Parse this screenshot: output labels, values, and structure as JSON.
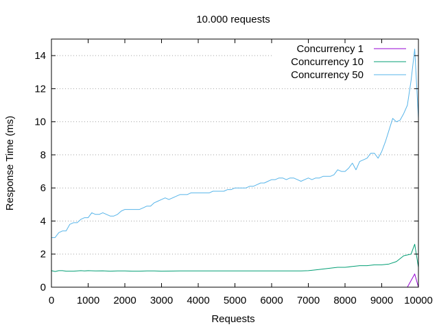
{
  "chart_data": {
    "type": "line",
    "title": "10.000 requests",
    "xlabel": "Requests",
    "ylabel": "Response Time (ms)",
    "xlim": [
      0,
      10000
    ],
    "ylim": [
      0,
      15
    ],
    "xticks": [
      0,
      1000,
      2000,
      3000,
      4000,
      5000,
      6000,
      7000,
      8000,
      9000,
      10000
    ],
    "yticks": [
      0,
      2,
      4,
      6,
      8,
      10,
      12,
      14
    ],
    "grid": "horizontal",
    "legend_position": "top-right",
    "series": [
      {
        "name": "Concurrency 1",
        "color": "#9400d3",
        "points": [
          [
            0,
            0
          ],
          [
            1000,
            0
          ],
          [
            2000,
            0
          ],
          [
            3000,
            0
          ],
          [
            4000,
            0
          ],
          [
            5000,
            0
          ],
          [
            6000,
            0
          ],
          [
            7000,
            0
          ],
          [
            8000,
            0
          ],
          [
            9000,
            0
          ],
          [
            9700,
            0
          ],
          [
            9900,
            0.8
          ],
          [
            10000,
            0
          ]
        ]
      },
      {
        "name": "Concurrency 10",
        "color": "#009e73",
        "points": [
          [
            0,
            1.0
          ],
          [
            100,
            0.95
          ],
          [
            200,
            1.0
          ],
          [
            300,
            1.0
          ],
          [
            400,
            0.97
          ],
          [
            500,
            0.97
          ],
          [
            600,
            0.97
          ],
          [
            700,
            0.98
          ],
          [
            800,
            1.0
          ],
          [
            900,
            0.98
          ],
          [
            1000,
            1.0
          ],
          [
            1200,
            0.98
          ],
          [
            1400,
            0.99
          ],
          [
            1600,
            0.97
          ],
          [
            1800,
            0.98
          ],
          [
            2000,
            0.98
          ],
          [
            2200,
            0.97
          ],
          [
            2400,
            0.97
          ],
          [
            2600,
            0.98
          ],
          [
            2800,
            0.98
          ],
          [
            3000,
            0.97
          ],
          [
            3500,
            0.98
          ],
          [
            4000,
            0.98
          ],
          [
            4500,
            0.98
          ],
          [
            5000,
            0.98
          ],
          [
            5500,
            0.98
          ],
          [
            6000,
            0.98
          ],
          [
            6500,
            0.98
          ],
          [
            6800,
            0.98
          ],
          [
            7000,
            1.0
          ],
          [
            7200,
            1.05
          ],
          [
            7400,
            1.1
          ],
          [
            7600,
            1.15
          ],
          [
            7800,
            1.2
          ],
          [
            8000,
            1.2
          ],
          [
            8200,
            1.25
          ],
          [
            8400,
            1.3
          ],
          [
            8600,
            1.3
          ],
          [
            8800,
            1.35
          ],
          [
            9000,
            1.35
          ],
          [
            9200,
            1.4
          ],
          [
            9400,
            1.55
          ],
          [
            9600,
            1.9
          ],
          [
            9800,
            2.0
          ],
          [
            9900,
            2.6
          ],
          [
            10000,
            1.2
          ]
        ]
      },
      {
        "name": "Concurrency 50",
        "color": "#56b4e9",
        "points": [
          [
            0,
            3.0
          ],
          [
            100,
            3.0
          ],
          [
            200,
            3.3
          ],
          [
            300,
            3.4
          ],
          [
            400,
            3.4
          ],
          [
            500,
            3.8
          ],
          [
            600,
            3.9
          ],
          [
            700,
            3.9
          ],
          [
            800,
            4.1
          ],
          [
            900,
            4.2
          ],
          [
            1000,
            4.2
          ],
          [
            1100,
            4.5
          ],
          [
            1200,
            4.4
          ],
          [
            1300,
            4.4
          ],
          [
            1400,
            4.5
          ],
          [
            1500,
            4.4
          ],
          [
            1600,
            4.3
          ],
          [
            1700,
            4.3
          ],
          [
            1800,
            4.4
          ],
          [
            1900,
            4.6
          ],
          [
            2000,
            4.7
          ],
          [
            2100,
            4.7
          ],
          [
            2200,
            4.7
          ],
          [
            2300,
            4.7
          ],
          [
            2400,
            4.7
          ],
          [
            2500,
            4.8
          ],
          [
            2600,
            4.9
          ],
          [
            2700,
            4.9
          ],
          [
            2800,
            5.1
          ],
          [
            2900,
            5.2
          ],
          [
            3000,
            5.3
          ],
          [
            3100,
            5.4
          ],
          [
            3200,
            5.3
          ],
          [
            3300,
            5.4
          ],
          [
            3400,
            5.5
          ],
          [
            3500,
            5.6
          ],
          [
            3600,
            5.6
          ],
          [
            3700,
            5.6
          ],
          [
            3800,
            5.7
          ],
          [
            3900,
            5.7
          ],
          [
            4000,
            5.7
          ],
          [
            4100,
            5.7
          ],
          [
            4200,
            5.7
          ],
          [
            4300,
            5.7
          ],
          [
            4400,
            5.8
          ],
          [
            4500,
            5.8
          ],
          [
            4600,
            5.8
          ],
          [
            4700,
            5.8
          ],
          [
            4800,
            5.9
          ],
          [
            4900,
            5.9
          ],
          [
            5000,
            6.0
          ],
          [
            5100,
            6.0
          ],
          [
            5200,
            6.0
          ],
          [
            5300,
            6.0
          ],
          [
            5400,
            6.1
          ],
          [
            5500,
            6.1
          ],
          [
            5600,
            6.2
          ],
          [
            5700,
            6.3
          ],
          [
            5800,
            6.3
          ],
          [
            5900,
            6.4
          ],
          [
            6000,
            6.5
          ],
          [
            6100,
            6.5
          ],
          [
            6200,
            6.6
          ],
          [
            6300,
            6.6
          ],
          [
            6400,
            6.5
          ],
          [
            6500,
            6.6
          ],
          [
            6600,
            6.6
          ],
          [
            6700,
            6.5
          ],
          [
            6800,
            6.4
          ],
          [
            6900,
            6.5
          ],
          [
            7000,
            6.6
          ],
          [
            7100,
            6.5
          ],
          [
            7200,
            6.6
          ],
          [
            7300,
            6.6
          ],
          [
            7400,
            6.7
          ],
          [
            7500,
            6.7
          ],
          [
            7600,
            6.7
          ],
          [
            7700,
            6.8
          ],
          [
            7800,
            7.1
          ],
          [
            7900,
            7.0
          ],
          [
            8000,
            7.0
          ],
          [
            8100,
            7.2
          ],
          [
            8200,
            7.5
          ],
          [
            8300,
            7.1
          ],
          [
            8400,
            7.6
          ],
          [
            8500,
            7.7
          ],
          [
            8600,
            7.8
          ],
          [
            8700,
            8.1
          ],
          [
            8800,
            8.1
          ],
          [
            8900,
            7.8
          ],
          [
            9000,
            8.2
          ],
          [
            9100,
            8.8
          ],
          [
            9200,
            9.5
          ],
          [
            9300,
            10.2
          ],
          [
            9400,
            10.0
          ],
          [
            9500,
            10.1
          ],
          [
            9600,
            10.5
          ],
          [
            9700,
            11.0
          ],
          [
            9800,
            12.5
          ],
          [
            9900,
            14.4
          ],
          [
            10000,
            10.2
          ]
        ]
      }
    ]
  }
}
